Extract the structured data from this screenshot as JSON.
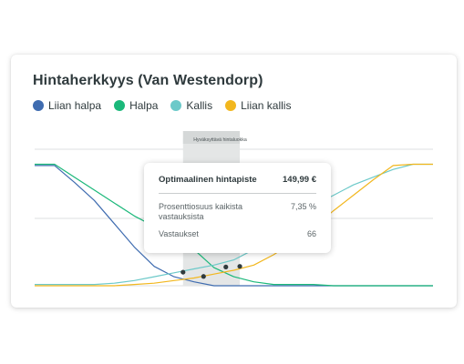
{
  "chart_data": {
    "type": "line",
    "title": "Hintaherkkyys (Van Westendorp)",
    "legend_position": "top-left",
    "grid": true,
    "ylim": [
      0,
      100
    ],
    "x": [
      0,
      1,
      2,
      3,
      4,
      5,
      6,
      7,
      8,
      9,
      10,
      11,
      12,
      13,
      14,
      15,
      16,
      17,
      18,
      19,
      20
    ],
    "series": [
      {
        "name": "Liian halpa",
        "color": "#3f6cb0",
        "values": [
          93,
          93,
          80,
          66,
          48,
          30,
          15,
          7,
          3,
          0,
          0,
          0,
          0,
          0,
          0,
          0,
          0,
          0,
          0,
          0,
          0
        ]
      },
      {
        "name": "Halpa",
        "color": "#1bb87a",
        "values": [
          94,
          94,
          84,
          74,
          64,
          54,
          46,
          38,
          28,
          14,
          7,
          3,
          1,
          1,
          1,
          0,
          0,
          0,
          0,
          0,
          0
        ]
      },
      {
        "name": "Kallis",
        "color": "#6cc9c9",
        "values": [
          1,
          1,
          1,
          1,
          2,
          4,
          7,
          10,
          13,
          16,
          20,
          28,
          40,
          52,
          62,
          70,
          78,
          84,
          90,
          94,
          94
        ]
      },
      {
        "name": "Liian kallis",
        "color": "#f2b71e",
        "values": [
          0,
          0,
          0,
          0,
          0,
          1,
          2,
          4,
          6,
          9,
          12,
          16,
          24,
          34,
          45,
          58,
          70,
          82,
          93,
          94,
          94
        ]
      }
    ],
    "intersections": [
      {
        "x": 7.45,
        "y": 10.5
      },
      {
        "x": 8.48,
        "y": 7.2
      },
      {
        "x": 9.6,
        "y": 14.5
      },
      {
        "x": 10.3,
        "y": 15
      }
    ],
    "acceptable_range": {
      "label": "Hyväksyttävä hintaluokka",
      "x_start": 7.45,
      "x_end": 10.3
    },
    "tooltip": {
      "title": "Optimaalinen hintapiste",
      "title_value": "149,99 €",
      "rows": [
        {
          "label": "Prosenttiosuus kaikista vastauksista",
          "value": "7,35 %"
        },
        {
          "label": "Vastaukset",
          "value": "66"
        }
      ]
    }
  }
}
